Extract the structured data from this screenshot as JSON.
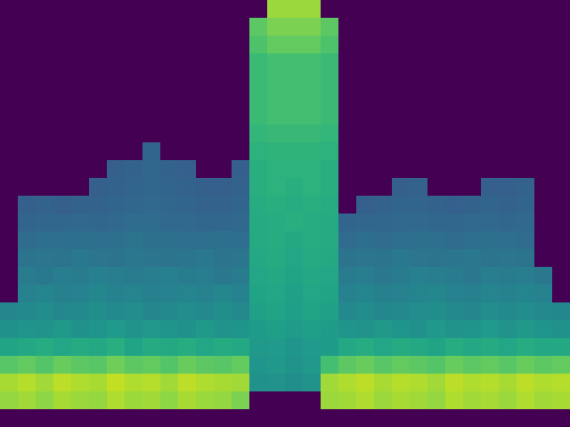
{
  "chart_data": {
    "type": "heatmap",
    "tick_labels": false,
    "zlim": [
      0,
      1
    ],
    "z": [
      [
        0,
        0,
        0,
        0,
        0,
        0,
        0,
        0,
        0,
        0,
        0,
        0,
        0,
        0,
        0,
        0.85,
        0.85,
        0.85,
        0,
        0,
        0,
        0,
        0,
        0,
        0,
        0,
        0,
        0,
        0,
        0,
        0,
        0
      ],
      [
        0,
        0,
        0,
        0,
        0,
        0,
        0,
        0,
        0,
        0,
        0,
        0,
        0,
        0,
        0.75,
        0.8,
        0.8,
        0.8,
        0.75,
        0,
        0,
        0,
        0,
        0,
        0,
        0,
        0,
        0,
        0,
        0,
        0,
        0
      ],
      [
        0,
        0,
        0,
        0,
        0,
        0,
        0,
        0,
        0,
        0,
        0,
        0,
        0,
        0,
        0.72,
        0.76,
        0.76,
        0.76,
        0.72,
        0,
        0,
        0,
        0,
        0,
        0,
        0,
        0,
        0,
        0,
        0,
        0,
        0
      ],
      [
        0,
        0,
        0,
        0,
        0,
        0,
        0,
        0,
        0,
        0,
        0,
        0,
        0,
        0,
        0.68,
        0.7,
        0.7,
        0.7,
        0.68,
        0,
        0,
        0,
        0,
        0,
        0,
        0,
        0,
        0,
        0,
        0,
        0,
        0
      ],
      [
        0,
        0,
        0,
        0,
        0,
        0,
        0,
        0,
        0,
        0,
        0,
        0,
        0,
        0,
        0.68,
        0.7,
        0.7,
        0.7,
        0.68,
        0,
        0,
        0,
        0,
        0,
        0,
        0,
        0,
        0,
        0,
        0,
        0,
        0
      ],
      [
        0,
        0,
        0,
        0,
        0,
        0,
        0,
        0,
        0,
        0,
        0,
        0,
        0,
        0,
        0.68,
        0.7,
        0.7,
        0.7,
        0.68,
        0,
        0,
        0,
        0,
        0,
        0,
        0,
        0,
        0,
        0,
        0,
        0,
        0
      ],
      [
        0,
        0,
        0,
        0,
        0,
        0,
        0,
        0,
        0,
        0,
        0,
        0,
        0,
        0,
        0.68,
        0.7,
        0.7,
        0.7,
        0.68,
        0,
        0,
        0,
        0,
        0,
        0,
        0,
        0,
        0,
        0,
        0,
        0,
        0
      ],
      [
        0,
        0,
        0,
        0,
        0,
        0,
        0,
        0,
        0,
        0,
        0,
        0,
        0,
        0,
        0.66,
        0.67,
        0.67,
        0.67,
        0.66,
        0,
        0,
        0,
        0,
        0,
        0,
        0,
        0,
        0,
        0,
        0,
        0,
        0
      ],
      [
        0,
        0,
        0,
        0,
        0,
        0,
        0,
        0,
        0.32,
        0,
        0,
        0,
        0,
        0,
        0.64,
        0.65,
        0.65,
        0.65,
        0.64,
        0,
        0,
        0,
        0,
        0,
        0,
        0,
        0,
        0,
        0,
        0,
        0,
        0
      ],
      [
        0,
        0,
        0,
        0,
        0,
        0,
        0.3,
        0.31,
        0.33,
        0.31,
        0.3,
        0,
        0,
        0.3,
        0.63,
        0.64,
        0.64,
        0.64,
        0.63,
        0,
        0,
        0,
        0,
        0,
        0,
        0,
        0,
        0,
        0,
        0,
        0,
        0
      ],
      [
        0,
        0,
        0,
        0,
        0,
        0.3,
        0.31,
        0.32,
        0.33,
        0.32,
        0.31,
        0.3,
        0.3,
        0.31,
        0.63,
        0.64,
        0.63,
        0.64,
        0.63,
        0,
        0,
        0,
        0.3,
        0.31,
        0,
        0,
        0,
        0.3,
        0.3,
        0.31,
        0,
        0
      ],
      [
        0,
        0.3,
        0.31,
        0.3,
        0.31,
        0.31,
        0.32,
        0.33,
        0.34,
        0.33,
        0.32,
        0.31,
        0.31,
        0.32,
        0.62,
        0.63,
        0.62,
        0.63,
        0.62,
        0,
        0.3,
        0.31,
        0.32,
        0.32,
        0.31,
        0.3,
        0.31,
        0.32,
        0.31,
        0.32,
        0,
        0
      ],
      [
        0,
        0.32,
        0.33,
        0.33,
        0.34,
        0.33,
        0.34,
        0.35,
        0.35,
        0.34,
        0.34,
        0.33,
        0.33,
        0.34,
        0.61,
        0.62,
        0.63,
        0.62,
        0.61,
        0.32,
        0.33,
        0.33,
        0.34,
        0.34,
        0.33,
        0.33,
        0.34,
        0.34,
        0.33,
        0.34,
        0,
        0
      ],
      [
        0,
        0.35,
        0.36,
        0.36,
        0.37,
        0.36,
        0.37,
        0.38,
        0.37,
        0.37,
        0.36,
        0.36,
        0.37,
        0.36,
        0.61,
        0.62,
        0.6,
        0.62,
        0.61,
        0.35,
        0.36,
        0.35,
        0.36,
        0.37,
        0.36,
        0.35,
        0.36,
        0.37,
        0.36,
        0.35,
        0,
        0
      ],
      [
        0,
        0.38,
        0.39,
        0.38,
        0.4,
        0.39,
        0.38,
        0.4,
        0.39,
        0.38,
        0.39,
        0.4,
        0.38,
        0.39,
        0.6,
        0.61,
        0.59,
        0.61,
        0.6,
        0.38,
        0.39,
        0.38,
        0.4,
        0.39,
        0.38,
        0.39,
        0.4,
        0.38,
        0.39,
        0.38,
        0,
        0
      ],
      [
        0,
        0.41,
        0.4,
        0.42,
        0.41,
        0.43,
        0.42,
        0.41,
        0.42,
        0.43,
        0.41,
        0.42,
        0.4,
        0.41,
        0.59,
        0.6,
        0.58,
        0.6,
        0.59,
        0.41,
        0.42,
        0.4,
        0.41,
        0.43,
        0.42,
        0.41,
        0.4,
        0.42,
        0.41,
        0.42,
        0.4,
        0
      ],
      [
        0,
        0.44,
        0.45,
        0.43,
        0.44,
        0.46,
        0.44,
        0.45,
        0.43,
        0.44,
        0.45,
        0.44,
        0.46,
        0.44,
        0.58,
        0.59,
        0.57,
        0.59,
        0.58,
        0.44,
        0.45,
        0.43,
        0.44,
        0.45,
        0.46,
        0.44,
        0.43,
        0.45,
        0.44,
        0.45,
        0.44,
        0
      ],
      [
        0.46,
        0.47,
        0.48,
        0.46,
        0.47,
        0.49,
        0.47,
        0.48,
        0.46,
        0.47,
        0.48,
        0.47,
        0.49,
        0.47,
        0.57,
        0.58,
        0.56,
        0.58,
        0.57,
        0.47,
        0.48,
        0.46,
        0.47,
        0.48,
        0.49,
        0.47,
        0.46,
        0.48,
        0.47,
        0.48,
        0.47,
        0.46
      ],
      [
        0.5,
        0.52,
        0.51,
        0.53,
        0.5,
        0.52,
        0.54,
        0.51,
        0.53,
        0.52,
        0.5,
        0.53,
        0.51,
        0.52,
        0.55,
        0.56,
        0.54,
        0.56,
        0.55,
        0.52,
        0.51,
        0.53,
        0.52,
        0.5,
        0.53,
        0.51,
        0.52,
        0.54,
        0.51,
        0.53,
        0.52,
        0.5
      ],
      [
        0.58,
        0.6,
        0.62,
        0.59,
        0.61,
        0.6,
        0.63,
        0.58,
        0.61,
        0.6,
        0.62,
        0.59,
        0.61,
        0.6,
        0.53,
        0.54,
        0.52,
        0.54,
        0.55,
        0.6,
        0.62,
        0.59,
        0.61,
        0.6,
        0.58,
        0.62,
        0.6,
        0.61,
        0.59,
        0.62,
        0.6,
        0.6
      ],
      [
        0.74,
        0.76,
        0.73,
        0.77,
        0.75,
        0.74,
        0.78,
        0.75,
        0.76,
        0.73,
        0.77,
        0.75,
        0.74,
        0.76,
        0.52,
        0.53,
        0.51,
        0.53,
        0.7,
        0.75,
        0.77,
        0.74,
        0.76,
        0.75,
        0.73,
        0.77,
        0.75,
        0.76,
        0.74,
        0.77,
        0.75,
        0.76
      ],
      [
        0.87,
        0.89,
        0.86,
        0.9,
        0.88,
        0.87,
        0.91,
        0.88,
        0.89,
        0.86,
        0.9,
        0.88,
        0.87,
        0.86,
        0.5,
        0.51,
        0.49,
        0.51,
        0.86,
        0.88,
        0.9,
        0.87,
        0.89,
        0.88,
        0.86,
        0.9,
        0.88,
        0.89,
        0.87,
        0.9,
        0.88,
        0.89
      ],
      [
        0.84,
        0.86,
        0.83,
        0.87,
        0.85,
        0.84,
        0.88,
        0.85,
        0.86,
        0.83,
        0.87,
        0.85,
        0.84,
        0.8,
        0,
        0,
        0,
        0,
        0.85,
        0.86,
        0.88,
        0.85,
        0.87,
        0.86,
        0.84,
        0.88,
        0.86,
        0.87,
        0.85,
        0.88,
        0.86,
        0.87
      ],
      [
        0,
        0,
        0,
        0,
        0,
        0,
        0,
        0,
        0,
        0,
        0,
        0,
        0,
        0,
        0,
        0,
        0,
        0,
        0,
        0,
        0,
        0,
        0,
        0,
        0,
        0,
        0,
        0,
        0,
        0,
        0,
        0
      ]
    ]
  }
}
